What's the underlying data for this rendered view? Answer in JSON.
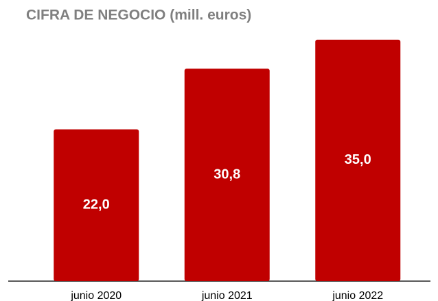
{
  "chart_data": {
    "type": "bar",
    "title": "CIFRA DE NEGOCIO (mill. euros)",
    "categories": [
      "junio 2020",
      "junio 2021",
      "junio 2022"
    ],
    "values": [
      22.0,
      30.8,
      35.0
    ],
    "value_labels": [
      "22,0",
      "30,8",
      "35,0"
    ],
    "color": "#c00000"
  }
}
